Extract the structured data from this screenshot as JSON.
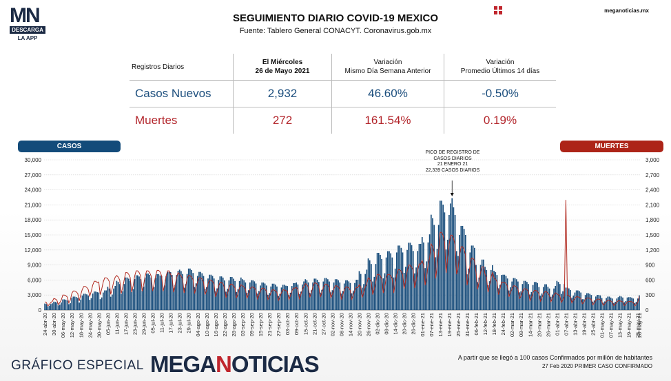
{
  "header": {
    "title": "SEGUIMIENTO DIARIO COVID-19 MEXICO",
    "subtitle": "Fuente: Tablero General CONACYT. Coronavirus.gob.mx",
    "site": "meganoticias.mx",
    "logo_top": "MN",
    "logo_mid": "DESCARGA",
    "logo_bottom": "LA APP"
  },
  "stats_table": {
    "col0": "Registros Diarios",
    "col1_line1": "El Miércoles",
    "col1_line2": "26 de Mayo 2021",
    "col2_line1": "Variación",
    "col2_line2": "Mismo Día Semana Anterior",
    "col3_line1": "Variación",
    "col3_line2": "Promedio Últimos 14 días",
    "cases": {
      "label": "Casos Nuevos",
      "value": "2,932",
      "var_week": "46.60%",
      "var_avg": "-0.50%"
    },
    "deaths": {
      "label": "Muertes",
      "value": "272",
      "var_week": "161.54%",
      "var_avg": "0.19%"
    }
  },
  "chart_labels": {
    "left_pill": "CASOS",
    "right_pill": "MUERTES",
    "annotation": [
      "PICO DE REGISTRO DE",
      "CASOS DIARIOS",
      "21 ENERO 21",
      "22,339 CASOS DIARIOS"
    ]
  },
  "colors": {
    "cases": "#1b4f7d",
    "deaths": "#b12a20"
  },
  "chart_data": {
    "type": "bar",
    "series": [
      {
        "name": "CASOS",
        "kind": "bar",
        "axis": "left"
      },
      {
        "name": "MUERTES",
        "kind": "line",
        "axis": "right"
      }
    ],
    "y_left": {
      "min": 0,
      "max": 30000,
      "ticks": [
        "30,000",
        "27,000",
        "24,000",
        "21,000",
        "18,000",
        "15,000",
        "12,000",
        "9,000",
        "6,000",
        "3,000",
        "0"
      ]
    },
    "y_right": {
      "min": 0,
      "max": 3000,
      "ticks": [
        "3,000",
        "2,700",
        "2,400",
        "2,100",
        "1,800",
        "1,500",
        "1,200",
        "900",
        "600",
        "300",
        "0"
      ]
    },
    "x_start": "2020-04-24",
    "x_end": "2021-05-26",
    "x_tick_labels": [
      "24-abr-20",
      "30-abr-20",
      "06-may-20",
      "12-may-20",
      "18-may-20",
      "24-may-20",
      "30-may-20",
      "05-jun-20",
      "11-jun-20",
      "17-jun-20",
      "23-jun-20",
      "29-jun-20",
      "05-jul-20",
      "11-jul-20",
      "17-jul-20",
      "23-jul-20",
      "29-jul-20",
      "04-ago-20",
      "10-ago-20",
      "16-ago-20",
      "22-ago-20",
      "28-ago-20",
      "03-sep-20",
      "09-sep-20",
      "15-sep-20",
      "21-sep-20",
      "27-sep-20",
      "03-oct-20",
      "09-oct-20",
      "15-oct-20",
      "21-oct-20",
      "27-oct-20",
      "02-nov-20",
      "08-nov-20",
      "14-nov-20",
      "20-nov-20",
      "26-nov-20",
      "02-dic-20",
      "08-dic-20",
      "14-dic-20",
      "20-dic-20",
      "26-dic-20",
      "01-ene-21",
      "07-ene-21",
      "13-ene-21",
      "19-ene-21",
      "25-ene-21",
      "31-ene-21",
      "06-feb-21",
      "12-feb-21",
      "18-feb-21",
      "24-feb-21",
      "02-mar-21",
      "08-mar-21",
      "14-mar-21",
      "20-mar-21",
      "26-mar-21",
      "01-abr-21",
      "07-abr-21",
      "13-abr-21",
      "19-abr-21",
      "25-abr-21",
      "01-may-21",
      "07-may-21",
      "13-may-21",
      "19-may-21",
      "25-may-21",
      "26-may-21"
    ],
    "weekly_cases": [
      1200,
      1500,
      1900,
      2400,
      2900,
      3300,
      3500,
      4300,
      5200,
      5800,
      6200,
      6500,
      6400,
      6800,
      7000,
      7200,
      7400,
      6800,
      6300,
      6000,
      5900,
      5800,
      5500,
      5300,
      4900,
      4700,
      4500,
      4800,
      5100,
      5500,
      5600,
      5700,
      5500,
      5300,
      5400,
      7200,
      9200,
      10200,
      10500,
      11500,
      12000,
      11800,
      13500,
      17000,
      19500,
      19000,
      15000,
      11500,
      9000,
      8000,
      7000,
      6300,
      5700,
      5200,
      5000,
      4600,
      4300,
      5200,
      4000,
      3500,
      3000,
      2700,
      2400,
      2300,
      2500,
      2300,
      2300
    ],
    "weekly_deaths": [
      150,
      200,
      260,
      330,
      410,
      500,
      560,
      570,
      600,
      650,
      680,
      680,
      690,
      680,
      650,
      620,
      600,
      560,
      520,
      480,
      450,
      440,
      420,
      400,
      380,
      350,
      350,
      380,
      410,
      460,
      470,
      450,
      420,
      400,
      390,
      460,
      560,
      620,
      620,
      700,
      780,
      800,
      900,
      1150,
      1350,
      1300,
      1100,
      900,
      750,
      650,
      560,
      480,
      420,
      370,
      340,
      320,
      300,
      280,
      260,
      230,
      210,
      190,
      170,
      160,
      160,
      150,
      150
    ],
    "peak": {
      "date": "21-ene-21",
      "cases": 22339
    },
    "spike_deaths": {
      "date": "07-abr-21",
      "value": 2200
    },
    "last_day": {
      "date": "26-may-21",
      "cases": 2932,
      "deaths": 272
    }
  },
  "footer": {
    "left": "GRÁFICO ESPECIAL",
    "brand_a": "MEGA",
    "brand_n": "N",
    "brand_b": "OTICIAS",
    "note1": "A partir que se llegó a 100 casos Confirmados por millón de habitantes",
    "note2": "27 Feb 2020 PRIMER CASO CONFIRMADO"
  }
}
